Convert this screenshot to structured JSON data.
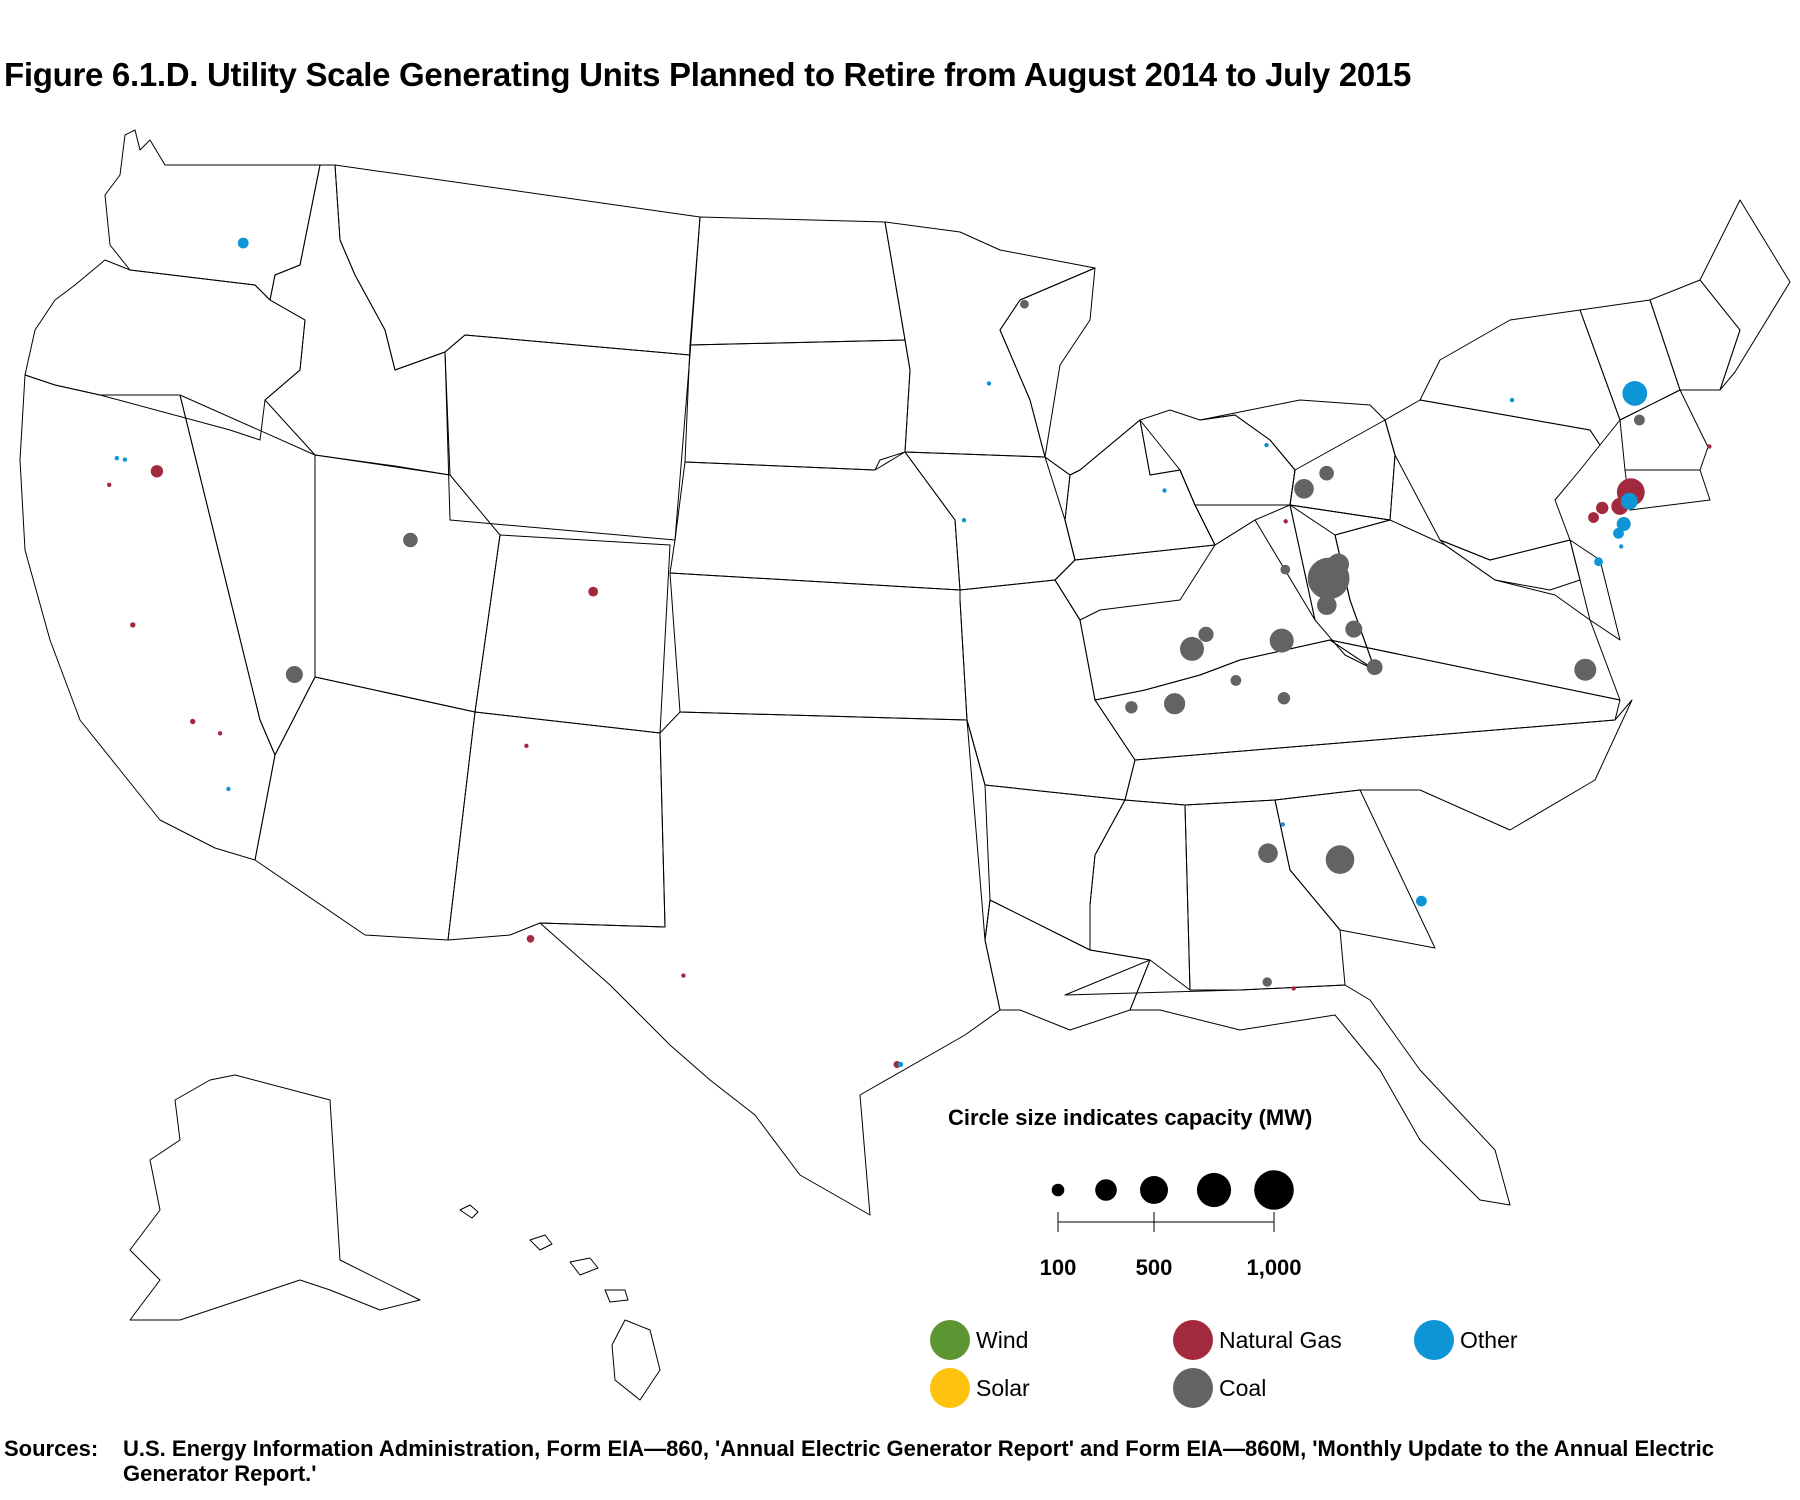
{
  "title": "Figure 6.1.D. Utility Scale Generating Units Planned to Retire from August 2014 to July 2015",
  "legend": {
    "size_title": "Circle size indicates capacity (MW)",
    "size_ticks": [
      {
        "label": "100",
        "value": 100
      },
      {
        "label": "500",
        "value": 500
      },
      {
        "label": "1,000",
        "value": 1000
      }
    ],
    "size_examples_mw": [
      100,
      300,
      500,
      750,
      1000
    ],
    "fuels": [
      {
        "label": "Wind",
        "color": "#5b9632"
      },
      {
        "label": "Solar",
        "color": "#ffc20e"
      },
      {
        "label": "Natural Gas",
        "color": "#a32a3e"
      },
      {
        "label": "Coal",
        "color": "#636363"
      },
      {
        "label": "Other",
        "color": "#0e95d6"
      }
    ]
  },
  "source_label": "Sources:",
  "source_text": "U.S. Energy Information Administration, Form EIA—860, 'Annual Electric Generator Report' and Form EIA—860M, 'Monthly Update to the Annual Electric Generator Report.'",
  "plants": [
    {
      "fuel": "Other",
      "mw": 60,
      "lon": -119.5,
      "lat": 46.6
    },
    {
      "fuel": "Other",
      "mw": 5,
      "lon": -121.0,
      "lat": 39.3
    },
    {
      "fuel": "Other",
      "mw": 5,
      "lon": -121.3,
      "lat": 39.2
    },
    {
      "fuel": "Natural Gas",
      "mw": 5,
      "lon": -121.5,
      "lat": 38.4
    },
    {
      "fuel": "Natural Gas",
      "mw": 80,
      "lon": -119.8,
      "lat": 39.5
    },
    {
      "fuel": "Natural Gas",
      "mw": 15,
      "lon": -120.6,
      "lat": 35.3
    },
    {
      "fuel": "Natural Gas",
      "mw": 5,
      "lon": -117.3,
      "lat": 34.0
    },
    {
      "fuel": "Natural Gas",
      "mw": 15,
      "lon": -118.4,
      "lat": 33.9
    },
    {
      "fuel": "Other",
      "mw": 10,
      "lon": -117.2,
      "lat": 32.8
    },
    {
      "fuel": "Coal",
      "mw": 150,
      "lon": -114.4,
      "lat": 36.2
    },
    {
      "fuel": "Coal",
      "mw": 110,
      "lon": -110.9,
      "lat": 40.3
    },
    {
      "fuel": "Natural Gas",
      "mw": 50,
      "lon": -104.8,
      "lat": 39.8
    },
    {
      "fuel": "Natural Gas",
      "mw": 5,
      "lon": -106.5,
      "lat": 36.0
    },
    {
      "fuel": "Natural Gas",
      "mw": 30,
      "lon": -106.4,
      "lat": 31.8
    },
    {
      "fuel": "Natural Gas",
      "mw": 5,
      "lon": -101.5,
      "lat": 31.4
    },
    {
      "fuel": "Natural Gas",
      "mw": 25,
      "lon": -95.1,
      "lat": 29.6
    },
    {
      "fuel": "Other",
      "mw": 15,
      "lon": -95.0,
      "lat": 29.6
    },
    {
      "fuel": "Coal",
      "mw": 40,
      "lon": -92.1,
      "lat": 46.8
    },
    {
      "fuel": "Other",
      "mw": 5,
      "lon": -93.1,
      "lat": 44.9
    },
    {
      "fuel": "Other",
      "mw": 5,
      "lon": -93.6,
      "lat": 41.6
    },
    {
      "fuel": "Other",
      "mw": 5,
      "lon": -87.6,
      "lat": 41.9
    },
    {
      "fuel": "Other",
      "mw": 5,
      "lon": -84.5,
      "lat": 42.7
    },
    {
      "fuel": "Coal",
      "mw": 300,
      "lon": -86.9,
      "lat": 38.2
    },
    {
      "fuel": "Coal",
      "mw": 120,
      "lon": -86.5,
      "lat": 38.5
    },
    {
      "fuel": "Coal",
      "mw": 230,
      "lon": -87.4,
      "lat": 37.0
    },
    {
      "fuel": "Coal",
      "mw": 80,
      "lon": -88.6,
      "lat": 37.0
    },
    {
      "fuel": "Coal",
      "mw": 60,
      "lon": -85.7,
      "lat": 37.4
    },
    {
      "fuel": "Coal",
      "mw": 80,
      "lon": -84.4,
      "lat": 36.9
    },
    {
      "fuel": "Coal",
      "mw": 300,
      "lon": -84.4,
      "lat": 38.2
    },
    {
      "fuel": "Coal",
      "mw": 900,
      "lon": -83.0,
      "lat": 39.5
    },
    {
      "fuel": "Coal",
      "mw": 240,
      "lon": -82.7,
      "lat": 39.8
    },
    {
      "fuel": "Coal",
      "mw": 200,
      "lon": -83.1,
      "lat": 38.9
    },
    {
      "fuel": "Coal",
      "mw": 150,
      "lon": -82.4,
      "lat": 38.3
    },
    {
      "fuel": "Coal",
      "mw": 130,
      "lon": -81.9,
      "lat": 37.4
    },
    {
      "fuel": "Coal",
      "mw": 50,
      "lon": -84.2,
      "lat": 39.8
    },
    {
      "fuel": "Coal",
      "mw": 200,
      "lon": -83.5,
      "lat": 41.6
    },
    {
      "fuel": "Coal",
      "mw": 110,
      "lon": -82.8,
      "lat": 41.9
    },
    {
      "fuel": "Natural Gas",
      "mw": 5,
      "lon": -84.1,
      "lat": 40.9
    },
    {
      "fuel": "Coal",
      "mw": 250,
      "lon": -76.3,
      "lat": 36.9
    },
    {
      "fuel": "Coal",
      "mw": 200,
      "lon": -84.9,
      "lat": 33.5
    },
    {
      "fuel": "Coal",
      "mw": 420,
      "lon": -83.0,
      "lat": 33.2
    },
    {
      "fuel": "Other",
      "mw": 5,
      "lon": -84.5,
      "lat": 34.1
    },
    {
      "fuel": "Other",
      "mw": 60,
      "lon": -80.9,
      "lat": 32.1
    },
    {
      "fuel": "Coal",
      "mw": 45,
      "lon": -84.9,
      "lat": 30.7
    },
    {
      "fuel": "Natural Gas",
      "mw": 10,
      "lon": -84.2,
      "lat": 30.5
    },
    {
      "fuel": "Other",
      "mw": 5,
      "lon": -77.0,
      "lat": 43.1
    },
    {
      "fuel": "Other",
      "mw": 320,
      "lon": -73.3,
      "lat": 43.0
    },
    {
      "fuel": "Coal",
      "mw": 60,
      "lon": -73.4,
      "lat": 42.4
    },
    {
      "fuel": "Natural Gas",
      "mw": 10,
      "lon": -71.6,
      "lat": 41.7
    },
    {
      "fuel": "Natural Gas",
      "mw": 400,
      "lon": -74.2,
      "lat": 40.8
    },
    {
      "fuel": "Natural Gas",
      "mw": 150,
      "lon": -74.6,
      "lat": 40.5
    },
    {
      "fuel": "Natural Gas",
      "mw": 80,
      "lon": -75.1,
      "lat": 40.5
    },
    {
      "fuel": "Natural Gas",
      "mw": 60,
      "lon": -75.4,
      "lat": 40.3
    },
    {
      "fuel": "Other",
      "mw": 150,
      "lon": -74.3,
      "lat": 40.6
    },
    {
      "fuel": "Other",
      "mw": 100,
      "lon": -74.6,
      "lat": 40.1
    },
    {
      "fuel": "Other",
      "mw": 60,
      "lon": -74.8,
      "lat": 39.9
    },
    {
      "fuel": "Other",
      "mw": 10,
      "lon": -74.8,
      "lat": 39.6
    },
    {
      "fuel": "Other",
      "mw": 40,
      "lon": -75.5,
      "lat": 39.3
    }
  ]
}
